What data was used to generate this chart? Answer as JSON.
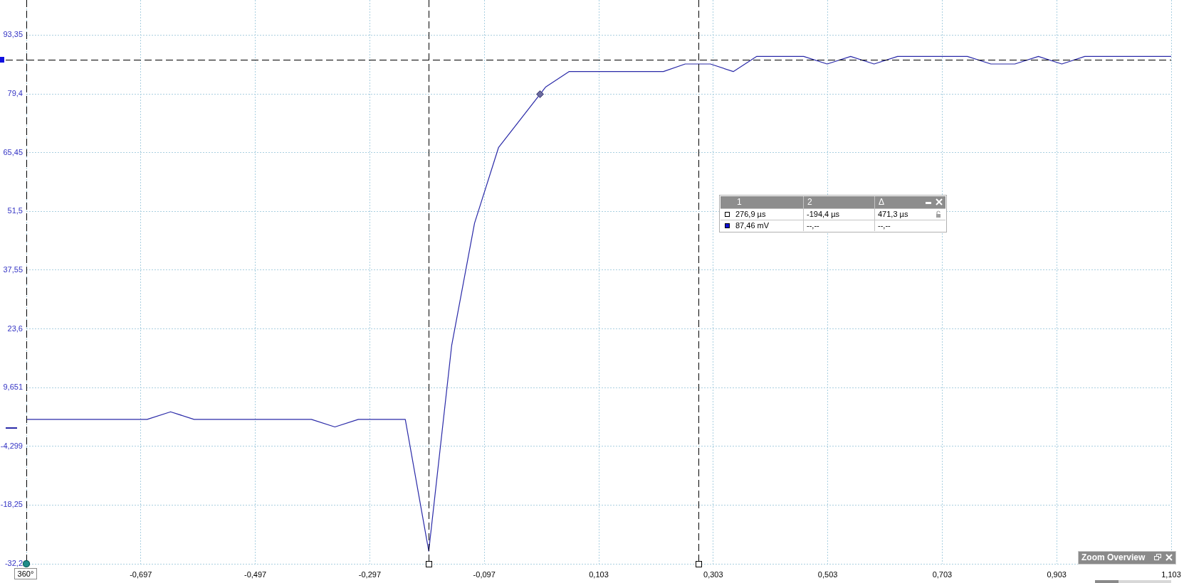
{
  "chart_data": {
    "type": "line",
    "x": [
      -0.897,
      -0.686,
      -0.645,
      -0.604,
      -0.399,
      -0.358,
      -0.317,
      -0.235,
      -0.194,
      -0.154,
      -0.114,
      -0.072,
      0.01,
      0.051,
      0.216,
      0.254,
      0.298,
      0.338,
      0.379,
      0.461,
      0.502,
      0.543,
      0.584,
      0.625,
      0.747,
      0.788,
      0.83,
      0.871,
      0.912,
      0.952,
      1.103
    ],
    "series": [
      {
        "color": "#2a2aa8",
        "values": [
          2.1,
          2.1,
          3.9,
          2.1,
          2.1,
          0.3,
          2.1,
          2.1,
          -29.2,
          19.6,
          48.7,
          66.7,
          81.0,
          84.7,
          84.7,
          86.5,
          86.5,
          84.7,
          88.3,
          88.3,
          86.5,
          88.3,
          86.5,
          88.3,
          88.3,
          86.5,
          86.5,
          88.3,
          86.5,
          88.3,
          88.3
        ]
      }
    ],
    "xlim": [
      -0.897,
      1.103
    ],
    "xticks": [
      {
        "value": -0.897,
        "label": null
      },
      {
        "value": -0.697,
        "label": "-0,697"
      },
      {
        "value": -0.497,
        "label": "-0,497"
      },
      {
        "value": -0.297,
        "label": "-0,297"
      },
      {
        "value": -0.097,
        "label": "-0,097"
      },
      {
        "value": 0.103,
        "label": "0,103"
      },
      {
        "value": 0.303,
        "label": "0,303"
      },
      {
        "value": 0.503,
        "label": "0,503"
      },
      {
        "value": 0.703,
        "label": "0,703"
      },
      {
        "value": 0.903,
        "label": "0,903"
      },
      {
        "value": 1.103,
        "label": "1,103"
      }
    ],
    "ylim": [
      -32.2,
      101.7
    ],
    "yticks": [
      {
        "value": -32.2,
        "label": "-32,2"
      },
      {
        "value": -18.25,
        "label": "-18,25"
      },
      {
        "value": -4.299,
        "label": "-4,299"
      },
      {
        "value": 9.651,
        "label": "9,651"
      },
      {
        "value": 23.6,
        "label": "23,6"
      },
      {
        "value": 37.55,
        "label": "37,55"
      },
      {
        "value": 51.5,
        "label": "51,5"
      },
      {
        "value": 65.45,
        "label": "65,45"
      },
      {
        "value": 79.4,
        "label": "79,4"
      },
      {
        "value": 93.35,
        "label": "93,35"
      }
    ],
    "grid": true,
    "ref_lines": [
      {
        "axis": "x",
        "value": -0.897,
        "color": "#000000",
        "line_style": "dashed"
      },
      {
        "axis": "x",
        "value": -0.1944,
        "color": "#000000",
        "line_style": "dashed"
      },
      {
        "axis": "x",
        "value": 0.2769,
        "color": "#000000",
        "line_style": "dashed"
      },
      {
        "axis": "y",
        "value": 87.46,
        "color": "#000000",
        "line_style": "dashed"
      }
    ],
    "annotations": [
      "1",
      "2",
      "Δ",
      "276,9 µs",
      "-194,4 µs",
      "471,3 µs",
      "87,46 mV",
      "--,--",
      "--,--",
      "Zoom Overview",
      "360°"
    ]
  }
}
